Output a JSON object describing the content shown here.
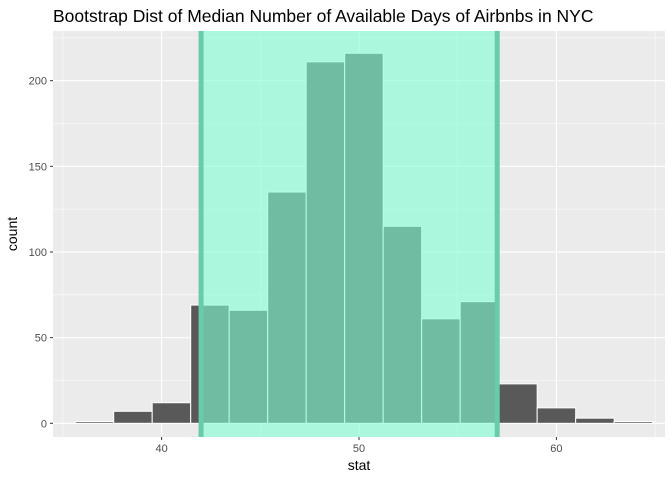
{
  "chart_data": {
    "type": "bar",
    "title": "Bootstrap Dist of Median Number of Available Days of Airbnbs in NYC",
    "xlabel": "stat",
    "ylabel": "count",
    "xlim": [
      34.5,
      65.5
    ],
    "ylim": [
      -8,
      229
    ],
    "x_ticks": [
      40,
      50,
      60
    ],
    "y_ticks": [
      0,
      50,
      100,
      150,
      200
    ],
    "bin_width": 1.95,
    "bins": [
      {
        "center": 36.6,
        "count": 1
      },
      {
        "center": 38.55,
        "count": 7
      },
      {
        "center": 40.5,
        "count": 12
      },
      {
        "center": 42.45,
        "count": 69
      },
      {
        "center": 44.4,
        "count": 66
      },
      {
        "center": 46.35,
        "count": 135
      },
      {
        "center": 48.3,
        "count": 211
      },
      {
        "center": 50.25,
        "count": 216
      },
      {
        "center": 52.2,
        "count": 115
      },
      {
        "center": 54.15,
        "count": 61
      },
      {
        "center": 56.1,
        "count": 71
      },
      {
        "center": 58.05,
        "count": 23
      },
      {
        "center": 60.0,
        "count": 9
      },
      {
        "center": 61.95,
        "count": 3
      },
      {
        "center": 63.9,
        "count": 1
      }
    ],
    "shade_interval": [
      42,
      57
    ],
    "colors": {
      "panel_bg": "#ebebeb",
      "grid": "#ffffff",
      "bar_fill": "#595959",
      "bar_outline": "#ffffff",
      "shade_fill": "#7fffd4",
      "shade_opacity": 0.6,
      "endpoint_line": "#66cdaa"
    },
    "grid": true,
    "legend": "none"
  }
}
